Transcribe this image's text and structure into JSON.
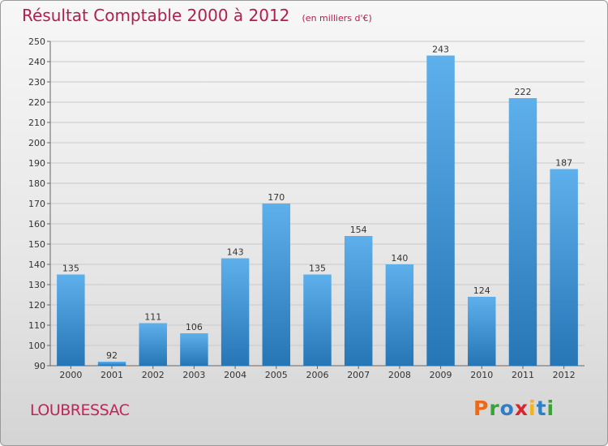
{
  "header": {
    "title": "Résultat Comptable 2000 à 2012",
    "subtitle": "(en milliers d'€)"
  },
  "commune": "LOUBRESSAC",
  "logo": {
    "letters": [
      "P",
      "r",
      "o",
      "x",
      "i",
      "t",
      "i"
    ],
    "colors": [
      "#ea6a1c",
      "#39a33a",
      "#2f7fc8",
      "#d8262e",
      "#f2b417",
      "#2f7fc8",
      "#39a33a"
    ]
  },
  "chart_data": {
    "type": "bar",
    "title": "Résultat Comptable 2000 à 2012",
    "xlabel": "",
    "ylabel": "",
    "categories": [
      "2000",
      "2001",
      "2002",
      "2003",
      "2004",
      "2005",
      "2006",
      "2007",
      "2008",
      "2009",
      "2010",
      "2011",
      "2012"
    ],
    "values": [
      135,
      92,
      111,
      106,
      143,
      170,
      135,
      154,
      140,
      243,
      124,
      222,
      187
    ],
    "ylim": [
      90,
      250
    ],
    "yticks": [
      90,
      100,
      110,
      120,
      130,
      140,
      150,
      160,
      170,
      180,
      190,
      200,
      210,
      220,
      230,
      240,
      250
    ],
    "grid": true,
    "bar_color_top": "#5eb0ec",
    "bar_color_bottom": "#2675b5"
  }
}
